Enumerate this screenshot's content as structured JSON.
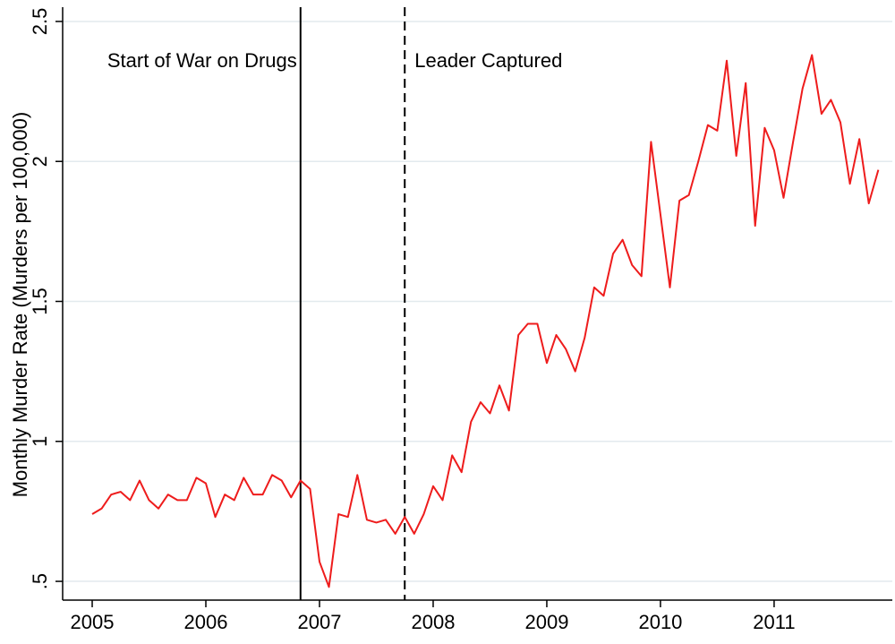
{
  "chart_data": {
    "type": "line",
    "y_label": "Monthly Murder Rate (Murders per 100,000)",
    "x": [
      2005,
      2005.083,
      2005.167,
      2005.25,
      2005.333,
      2005.417,
      2005.5,
      2005.583,
      2005.667,
      2005.75,
      2005.833,
      2005.917,
      2006,
      2006.083,
      2006.167,
      2006.25,
      2006.333,
      2006.417,
      2006.5,
      2006.583,
      2006.667,
      2006.75,
      2006.833,
      2006.917,
      2007,
      2007.083,
      2007.167,
      2007.25,
      2007.333,
      2007.417,
      2007.5,
      2007.583,
      2007.667,
      2007.75,
      2007.833,
      2007.917,
      2008,
      2008.083,
      2008.167,
      2008.25,
      2008.333,
      2008.417,
      2008.5,
      2008.583,
      2008.667,
      2008.75,
      2008.833,
      2008.917,
      2009,
      2009.083,
      2009.167,
      2009.25,
      2009.333,
      2009.417,
      2009.5,
      2009.583,
      2009.667,
      2009.75,
      2009.833,
      2009.917,
      2010,
      2010.083,
      2010.167,
      2010.25,
      2010.333,
      2010.417,
      2010.5,
      2010.583,
      2010.667,
      2010.75,
      2010.833,
      2010.917,
      2011,
      2011.083,
      2011.167,
      2011.25,
      2011.333,
      2011.417,
      2011.5,
      2011.583,
      2011.667,
      2011.75,
      2011.833,
      2011.917
    ],
    "series": [
      {
        "color": "#ee1c1c",
        "values": [
          0.74,
          0.76,
          0.81,
          0.82,
          0.79,
          0.86,
          0.79,
          0.76,
          0.81,
          0.79,
          0.79,
          0.87,
          0.85,
          0.73,
          0.81,
          0.79,
          0.87,
          0.81,
          0.81,
          0.88,
          0.86,
          0.8,
          0.86,
          0.83,
          0.57,
          0.48,
          0.74,
          0.73,
          0.88,
          0.72,
          0.71,
          0.72,
          0.67,
          0.73,
          0.67,
          0.74,
          0.84,
          0.79,
          0.95,
          0.89,
          1.07,
          1.14,
          1.1,
          1.2,
          1.11,
          1.38,
          1.42,
          1.42,
          1.28,
          1.38,
          1.33,
          1.25,
          1.37,
          1.55,
          1.52,
          1.67,
          1.72,
          1.63,
          1.59,
          2.07,
          1.81,
          1.55,
          1.86,
          1.88,
          2.0,
          2.13,
          2.11,
          2.36,
          2.02,
          2.28,
          1.77,
          2.12,
          2.04,
          1.87,
          2.07,
          2.26,
          2.38,
          2.17,
          2.22,
          2.14,
          1.92,
          2.08,
          1.85,
          1.97
        ]
      }
    ],
    "xlim": [
      2004.74,
      2012.04
    ],
    "xticks": [
      2005,
      2006,
      2007,
      2008,
      2009,
      2010,
      2011
    ],
    "ylim": [
      0.433,
      2.551
    ],
    "yticks": [
      {
        "value": 0.5,
        "label": ".5"
      },
      1,
      1.5,
      2,
      2.5
    ],
    "grid": true,
    "vlines": [
      {
        "x": 2006.833,
        "label": "Start of War on Drugs",
        "style": "solid",
        "label_side": "left"
      },
      {
        "x": 2007.75,
        "label": "Leader Captured",
        "style": "dashed",
        "label_side": "right"
      }
    ]
  }
}
